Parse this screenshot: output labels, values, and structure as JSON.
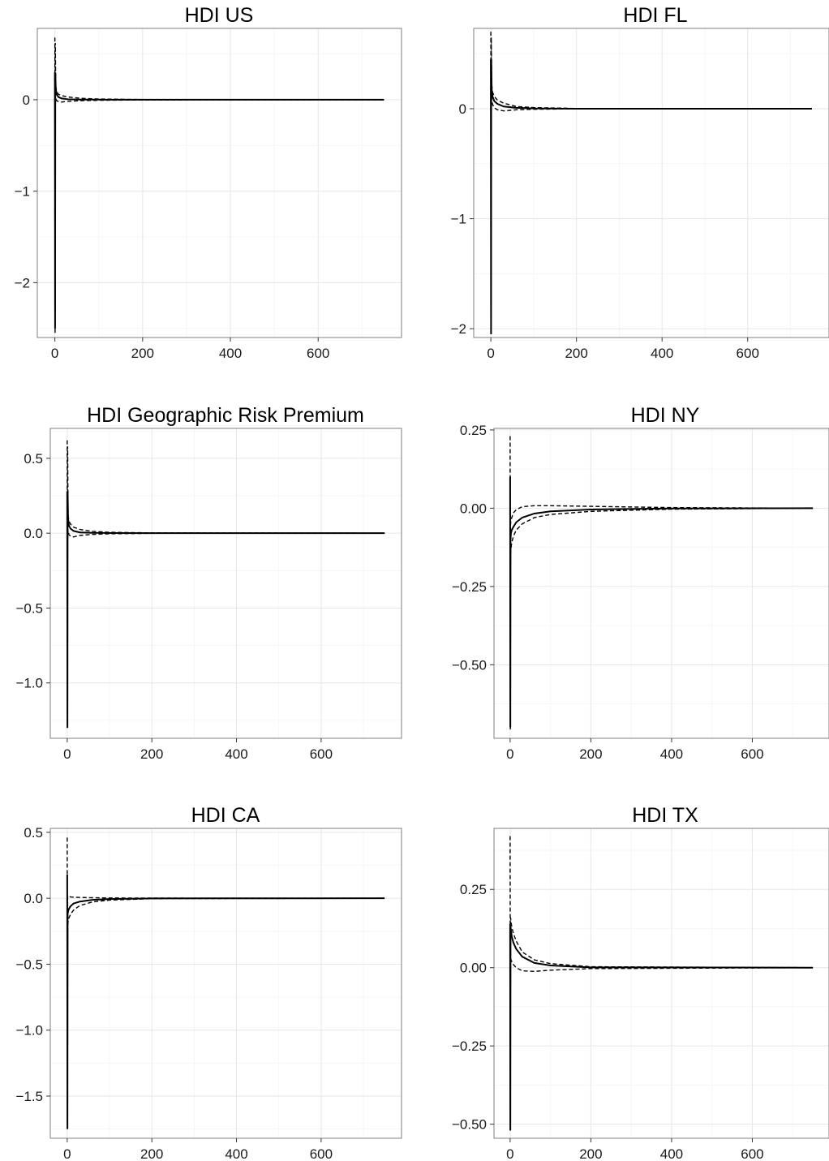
{
  "chart_data": [
    {
      "type": "line",
      "title": "HDI US",
      "x_ticks": [
        0,
        200,
        400,
        600
      ],
      "y_ticks": [
        0,
        -1,
        -2
      ],
      "y_tick_labels": [
        "0",
        "−1",
        "−2"
      ],
      "xlim": [
        -40,
        790
      ],
      "ylim": [
        -2.6,
        0.78
      ],
      "series": [
        {
          "style": "solid",
          "x": [
            0,
            0.5,
            1,
            2,
            4,
            8,
            15,
            30,
            60,
            100,
            200,
            750
          ],
          "y": [
            0.3,
            -2.5,
            0.3,
            0.12,
            0.06,
            0.03,
            0.015,
            0.005,
            0.002,
            0.001,
            0,
            0
          ]
        },
        {
          "style": "dashed",
          "x": [
            0,
            0.5,
            1,
            2,
            4,
            8,
            15,
            30,
            60,
            100,
            200,
            750
          ],
          "y": [
            0.68,
            -2.45,
            0.62,
            0.15,
            0.09,
            0.06,
            0.045,
            0.03,
            0.015,
            0.008,
            0.002,
            0
          ]
        },
        {
          "style": "dashed",
          "x": [
            0,
            0.5,
            1,
            2,
            4,
            8,
            15,
            30,
            60,
            100,
            200,
            750
          ],
          "y": [
            0.05,
            -2.55,
            -0.05,
            0.02,
            -0.01,
            -0.02,
            -0.025,
            -0.018,
            -0.01,
            -0.006,
            -0.002,
            0
          ]
        }
      ]
    },
    {
      "type": "line",
      "title": "HDI FL",
      "x_ticks": [
        0,
        200,
        400,
        600
      ],
      "y_ticks": [
        0,
        -1,
        -2
      ],
      "y_tick_labels": [
        "0",
        "−1",
        "−2"
      ],
      "xlim": [
        -40,
        790
      ],
      "ylim": [
        -2.08,
        0.73
      ],
      "series": [
        {
          "style": "solid",
          "x": [
            0,
            0.5,
            1,
            2,
            4,
            8,
            15,
            30,
            60,
            100,
            200,
            750
          ],
          "y": [
            0.45,
            -2.05,
            0.45,
            0.18,
            0.11,
            0.07,
            0.045,
            0.02,
            0.008,
            0.003,
            0,
            0
          ]
        },
        {
          "style": "dashed",
          "x": [
            0,
            0.5,
            1,
            2,
            4,
            8,
            15,
            30,
            60,
            100,
            200,
            750
          ],
          "y": [
            0.7,
            -2.0,
            0.65,
            0.22,
            0.15,
            0.11,
            0.08,
            0.05,
            0.02,
            0.01,
            0.002,
            0
          ]
        },
        {
          "style": "dashed",
          "x": [
            0,
            0.5,
            1,
            2,
            4,
            8,
            15,
            30,
            60,
            100,
            200,
            750
          ],
          "y": [
            0.2,
            -2.05,
            0.15,
            0.08,
            0.04,
            0.01,
            -0.01,
            -0.02,
            -0.01,
            -0.005,
            -0.001,
            0
          ]
        }
      ]
    },
    {
      "type": "line",
      "title": "HDI Geographic Risk Premium",
      "x_ticks": [
        0,
        200,
        400,
        600
      ],
      "y_ticks": [
        0.5,
        0.0,
        -0.5,
        -1.0
      ],
      "y_tick_labels": [
        "0.5",
        "0.0",
        "−0.5",
        "−1.0"
      ],
      "xlim": [
        -40,
        790
      ],
      "ylim": [
        -1.37,
        0.7
      ],
      "series": [
        {
          "style": "solid",
          "x": [
            0,
            0.5,
            1,
            2,
            4,
            8,
            15,
            30,
            60,
            100,
            200,
            750
          ],
          "y": [
            0.28,
            -1.3,
            0.28,
            0.1,
            0.05,
            0.03,
            0.015,
            0.005,
            0.002,
            0.001,
            0,
            0
          ]
        },
        {
          "style": "dashed",
          "x": [
            0,
            0.5,
            1,
            2,
            4,
            8,
            15,
            30,
            60,
            100,
            200,
            750
          ],
          "y": [
            0.62,
            -1.25,
            0.58,
            0.12,
            0.08,
            0.06,
            0.04,
            0.025,
            0.012,
            0.006,
            0.002,
            0
          ]
        },
        {
          "style": "dashed",
          "x": [
            0,
            0.5,
            1,
            2,
            4,
            8,
            15,
            30,
            60,
            100,
            200,
            750
          ],
          "y": [
            0.05,
            -1.3,
            -0.03,
            0.02,
            -0.01,
            -0.02,
            -0.025,
            -0.015,
            -0.008,
            -0.004,
            -0.001,
            0
          ]
        }
      ]
    },
    {
      "type": "line",
      "title": "HDI NY",
      "x_ticks": [
        0,
        200,
        400,
        600
      ],
      "y_ticks": [
        0.25,
        0.0,
        -0.25,
        -0.5
      ],
      "y_tick_labels": [
        "0.25",
        "0.00",
        "−0.25",
        "−0.50"
      ],
      "xlim": [
        -40,
        790
      ],
      "ylim": [
        -0.735,
        0.255
      ],
      "series": [
        {
          "style": "solid",
          "x": [
            0,
            0.5,
            1,
            2,
            4,
            8,
            15,
            30,
            60,
            100,
            200,
            400,
            750
          ],
          "y": [
            0.1,
            -0.7,
            -0.1,
            -0.08,
            -0.07,
            -0.06,
            -0.045,
            -0.03,
            -0.017,
            -0.01,
            -0.004,
            -0.001,
            0
          ]
        },
        {
          "style": "dashed",
          "x": [
            0,
            0.5,
            1,
            2,
            4,
            8,
            15,
            30,
            60,
            100,
            200,
            400,
            750
          ],
          "y": [
            0.23,
            -0.69,
            -0.05,
            -0.04,
            -0.03,
            -0.015,
            -0.005,
            0.005,
            0.008,
            0.008,
            0.006,
            0.002,
            0
          ]
        },
        {
          "style": "dashed",
          "x": [
            0,
            0.5,
            1,
            2,
            4,
            8,
            15,
            30,
            60,
            100,
            200,
            400,
            750
          ],
          "y": [
            -0.05,
            -0.71,
            -0.15,
            -0.13,
            -0.11,
            -0.09,
            -0.07,
            -0.05,
            -0.03,
            -0.02,
            -0.01,
            -0.003,
            0
          ]
        }
      ]
    },
    {
      "type": "line",
      "title": "HDI CA",
      "x_ticks": [
        0,
        200,
        400,
        600
      ],
      "y_ticks": [
        0.5,
        0.0,
        -0.5,
        -1.0,
        -1.5
      ],
      "y_tick_labels": [
        "0.5",
        "0.0",
        "−0.5",
        "−1.0",
        "−1.5"
      ],
      "xlim": [
        -40,
        790
      ],
      "ylim": [
        -1.82,
        0.53
      ],
      "series": [
        {
          "style": "solid",
          "x": [
            0,
            0.5,
            1,
            2,
            4,
            8,
            15,
            30,
            60,
            100,
            200,
            750
          ],
          "y": [
            0.18,
            -1.75,
            -0.12,
            -0.1,
            -0.08,
            -0.06,
            -0.04,
            -0.025,
            -0.012,
            -0.006,
            -0.001,
            0
          ]
        },
        {
          "style": "dashed",
          "x": [
            0,
            0.5,
            1,
            2,
            4,
            8,
            15,
            30,
            60,
            100,
            200,
            750
          ],
          "y": [
            0.46,
            -1.72,
            0.02,
            0.02,
            0.015,
            0.01,
            0.008,
            0.006,
            0.004,
            0.002,
            0.001,
            0
          ]
        },
        {
          "style": "dashed",
          "x": [
            0,
            0.5,
            1,
            2,
            4,
            8,
            15,
            30,
            60,
            100,
            200,
            750
          ],
          "y": [
            0.0,
            -1.75,
            -0.2,
            -0.18,
            -0.15,
            -0.12,
            -0.09,
            -0.055,
            -0.028,
            -0.014,
            -0.003,
            0
          ]
        }
      ]
    },
    {
      "type": "line",
      "title": "HDI TX",
      "x_ticks": [
        0,
        200,
        400,
        600
      ],
      "y_ticks": [
        0.25,
        0.0,
        -0.25,
        -0.5
      ],
      "y_tick_labels": [
        "0.25",
        "0.00",
        "−0.25",
        "−0.50"
      ],
      "xlim": [
        -40,
        790
      ],
      "ylim": [
        -0.545,
        0.445
      ],
      "series": [
        {
          "style": "solid",
          "x": [
            0,
            0.5,
            1,
            2,
            4,
            8,
            15,
            30,
            60,
            100,
            200,
            750
          ],
          "y": [
            0.14,
            -0.52,
            0.13,
            0.12,
            0.1,
            0.08,
            0.06,
            0.035,
            0.015,
            0.007,
            0.001,
            0
          ]
        },
        {
          "style": "dashed",
          "x": [
            0,
            0.5,
            1,
            2,
            4,
            8,
            15,
            30,
            60,
            100,
            200,
            750
          ],
          "y": [
            0.42,
            -0.5,
            0.16,
            0.15,
            0.13,
            0.11,
            0.085,
            0.05,
            0.025,
            0.013,
            0.003,
            0
          ]
        },
        {
          "style": "dashed",
          "x": [
            0,
            0.5,
            1,
            2,
            4,
            8,
            15,
            30,
            60,
            100,
            200,
            750
          ],
          "y": [
            0.05,
            -0.52,
            0.03,
            0.025,
            0.02,
            0.01,
            0.0,
            -0.01,
            -0.012,
            -0.008,
            -0.003,
            0
          ]
        }
      ]
    }
  ]
}
